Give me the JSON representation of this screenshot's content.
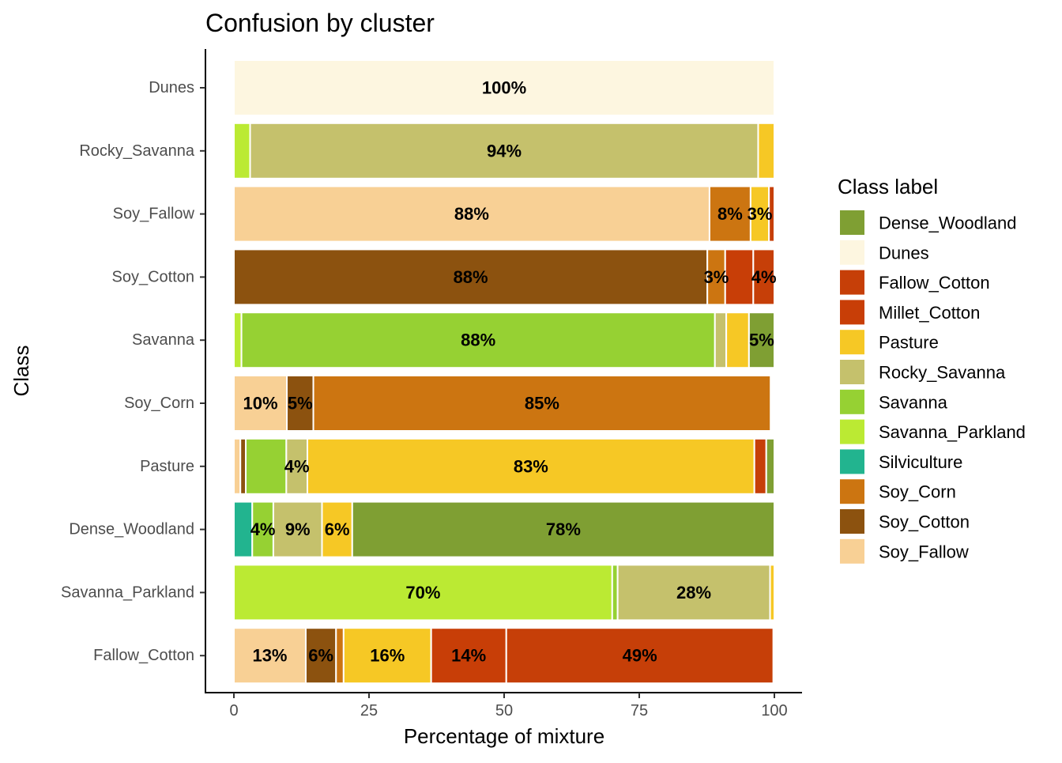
{
  "chart_data": {
    "type": "bar",
    "orientation": "horizontal",
    "stacked": true,
    "title": "Confusion by cluster",
    "xlabel": "Percentage of mixture",
    "ylabel": "Class",
    "xlim": [
      0,
      100
    ],
    "xticks": [
      "0",
      "25",
      "50",
      "75",
      "100"
    ],
    "grid": false,
    "legend_position": "right",
    "legend": {
      "title": "Class label",
      "items": [
        {
          "name": "Dense_Woodland",
          "color": "#7f9f33"
        },
        {
          "name": "Dunes",
          "color": "#fdf6e0"
        },
        {
          "name": "Fallow_Cotton",
          "color": "#c63f08"
        },
        {
          "name": "Millet_Cotton",
          "color": "#c83e07"
        },
        {
          "name": "Pasture",
          "color": "#f6c825"
        },
        {
          "name": "Rocky_Savanna",
          "color": "#c5c16c"
        },
        {
          "name": "Savanna",
          "color": "#96d133"
        },
        {
          "name": "Savanna_Parkland",
          "color": "#bbea33"
        },
        {
          "name": "Silviculture",
          "color": "#22b48f"
        },
        {
          "name": "Soy_Corn",
          "color": "#cc7511"
        },
        {
          "name": "Soy_Cotton",
          "color": "#8c520f"
        },
        {
          "name": "Soy_Fallow",
          "color": "#f8d095"
        }
      ]
    },
    "categories": [
      "Dunes",
      "Rocky_Savanna",
      "Soy_Fallow",
      "Soy_Cotton",
      "Savanna",
      "Soy_Corn",
      "Pasture",
      "Dense_Woodland",
      "Savanna_Parkland",
      "Fallow_Cotton"
    ],
    "bars": [
      {
        "category": "Dunes",
        "segments": [
          {
            "label": "Dunes",
            "value": 100,
            "text": "100%"
          }
        ]
      },
      {
        "category": "Rocky_Savanna",
        "segments": [
          {
            "label": "Savanna_Parkland",
            "value": 3,
            "text": ""
          },
          {
            "label": "Rocky_Savanna",
            "value": 94,
            "text": "94%"
          },
          {
            "label": "Pasture",
            "value": 3,
            "text": ""
          }
        ]
      },
      {
        "category": "Soy_Fallow",
        "segments": [
          {
            "label": "Soy_Fallow",
            "value": 88,
            "text": "88%"
          },
          {
            "label": "Soy_Corn",
            "value": 7.6,
            "text": "8%"
          },
          {
            "label": "Pasture",
            "value": 3.4,
            "text": "3%"
          },
          {
            "label": "Fallow_Cotton",
            "value": 1,
            "text": ""
          }
        ]
      },
      {
        "category": "Soy_Cotton",
        "segments": [
          {
            "label": "Soy_Cotton",
            "value": 87.6,
            "text": "88%"
          },
          {
            "label": "Soy_Corn",
            "value": 3.3,
            "text": "3%"
          },
          {
            "label": "Millet_Cotton",
            "value": 5.2,
            "text": ""
          },
          {
            "label": "Fallow_Cotton",
            "value": 3.9,
            "text": "4%"
          }
        ]
      },
      {
        "category": "Savanna",
        "segments": [
          {
            "label": "Savanna_Parkland",
            "value": 1.4,
            "text": ""
          },
          {
            "label": "Savanna",
            "value": 87.6,
            "text": "88%"
          },
          {
            "label": "Rocky_Savanna",
            "value": 2.1,
            "text": ""
          },
          {
            "label": "Pasture",
            "value": 4.2,
            "text": ""
          },
          {
            "label": "Dense_Woodland",
            "value": 4.7,
            "text": "5%"
          }
        ]
      },
      {
        "category": "Soy_Corn",
        "segments": [
          {
            "label": "Soy_Fallow",
            "value": 9.8,
            "text": "10%"
          },
          {
            "label": "Soy_Cotton",
            "value": 4.9,
            "text": "5%"
          },
          {
            "label": "Soy_Corn",
            "value": 84.6,
            "text": "85%"
          }
        ]
      },
      {
        "category": "Pasture",
        "segments": [
          {
            "label": "Soy_Fallow",
            "value": 1.2,
            "text": ""
          },
          {
            "label": "Soy_Cotton",
            "value": 1,
            "text": ""
          },
          {
            "label": "Savanna",
            "value": 7.5,
            "text": ""
          },
          {
            "label": "Rocky_Savanna",
            "value": 3.9,
            "text": "4%"
          },
          {
            "label": "Pasture",
            "value": 82.7,
            "text": "83%"
          },
          {
            "label": "Fallow_Cotton",
            "value": 2.2,
            "text": ""
          },
          {
            "label": "Dense_Woodland",
            "value": 1.5,
            "text": ""
          }
        ]
      },
      {
        "category": "Dense_Woodland",
        "segments": [
          {
            "label": "Silviculture",
            "value": 3.4,
            "text": ""
          },
          {
            "label": "Savanna",
            "value": 3.9,
            "text": "4%"
          },
          {
            "label": "Rocky_Savanna",
            "value": 9,
            "text": "9%"
          },
          {
            "label": "Pasture",
            "value": 5.6,
            "text": "6%"
          },
          {
            "label": "Dense_Woodland",
            "value": 78.1,
            "text": "78%"
          }
        ]
      },
      {
        "category": "Savanna_Parkland",
        "segments": [
          {
            "label": "Savanna_Parkland",
            "value": 70,
            "text": "70%"
          },
          {
            "label": "Savanna",
            "value": 1,
            "text": ""
          },
          {
            "label": "Rocky_Savanna",
            "value": 28.2,
            "text": "28%"
          },
          {
            "label": "Pasture",
            "value": 0.8,
            "text": ""
          }
        ]
      },
      {
        "category": "Fallow_Cotton",
        "segments": [
          {
            "label": "Soy_Fallow",
            "value": 13.3,
            "text": "13%"
          },
          {
            "label": "Soy_Cotton",
            "value": 5.6,
            "text": "6%"
          },
          {
            "label": "Soy_Corn",
            "value": 1.4,
            "text": ""
          },
          {
            "label": "Pasture",
            "value": 16.2,
            "text": "16%"
          },
          {
            "label": "Millet_Cotton",
            "value": 13.9,
            "text": "14%"
          },
          {
            "label": "Fallow_Cotton",
            "value": 49.4,
            "text": "49%"
          }
        ]
      }
    ]
  }
}
